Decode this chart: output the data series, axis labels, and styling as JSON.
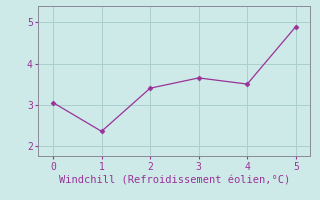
{
  "x": [
    0,
    1,
    2,
    3,
    4,
    5
  ],
  "y": [
    3.05,
    2.35,
    3.4,
    3.65,
    3.5,
    4.9
  ],
  "line_color": "#993399",
  "marker": "D",
  "marker_size": 2.5,
  "xlabel": "Windchill (Refroidissement éolien,°C)",
  "xlabel_fontsize": 7.5,
  "xlim": [
    -0.3,
    5.3
  ],
  "ylim": [
    1.75,
    5.4
  ],
  "yticks": [
    2,
    3,
    4,
    5
  ],
  "xticks": [
    0,
    1,
    2,
    3,
    4,
    5
  ],
  "background_color": "#ceeae8",
  "grid_color": "#aacfcc",
  "tick_color": "#993399",
  "spine_color": "#888899"
}
